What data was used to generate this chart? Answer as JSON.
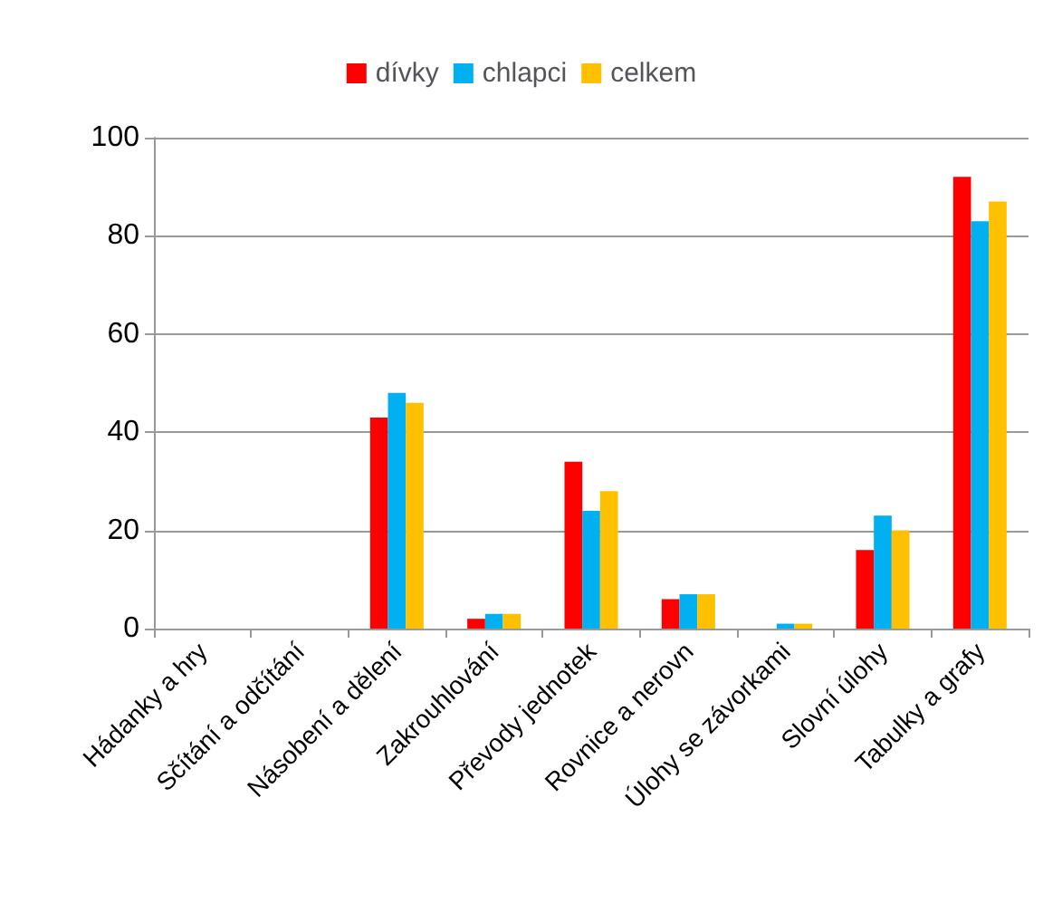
{
  "chart_data": {
    "type": "bar",
    "categories": [
      "Hádanky a hry",
      "Sčítání a odčítání",
      "Násobení a dělení",
      "Zakrouhlování",
      "Převody jednotek",
      "Rovnice a nerovn",
      "Úlohy se závorkami",
      "Slovní úlohy",
      "Tabulky a grafy"
    ],
    "series": [
      {
        "name": "dívky",
        "color": "#ff0000",
        "values": [
          0,
          0,
          43,
          2,
          34,
          6,
          0,
          16,
          92
        ]
      },
      {
        "name": "chlapci",
        "color": "#00b0f0",
        "values": [
          0,
          0,
          48,
          3,
          24,
          7,
          1,
          23,
          83
        ]
      },
      {
        "name": "celkem",
        "color": "#ffc000",
        "values": [
          0,
          0,
          46,
          3,
          28,
          7,
          1,
          20,
          87
        ]
      }
    ],
    "ylim": [
      0,
      100
    ],
    "yticks": [
      0,
      20,
      40,
      60,
      80,
      100
    ],
    "grid": "y",
    "legend": "top"
  }
}
